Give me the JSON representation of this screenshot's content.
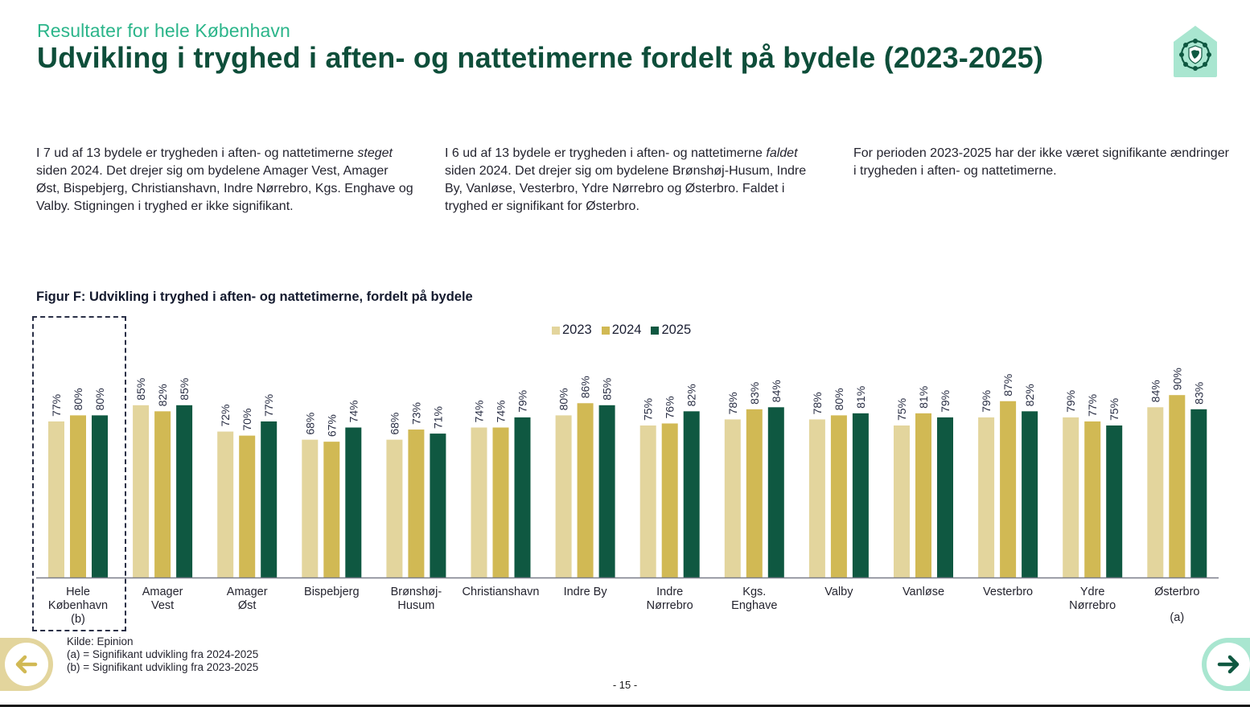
{
  "header": {
    "subtitle": "Resultater for hele København",
    "title": "Udvikling i tryghed i aften- og nattetimerne fordelt på bydele (2023-2025)",
    "logo_icon": "copenhagen-safety-house-icon"
  },
  "columns": [
    {
      "pre": "I 7 ud af 13 bydele er trygheden i aften- og nattetimerne ",
      "emphasis": "steget",
      "post": " siden 2024. Det drejer sig om bydelene Amager Vest, Amager Øst, Bispebjerg, Christianshavn, Indre Nørrebro, Kgs. Enghave og Valby. Stigningen i tryghed er ikke signifikant."
    },
    {
      "pre": "I 6 ud af 13 bydele er trygheden i aften- og nattetimerne ",
      "emphasis": "faldet",
      "post": " siden 2024. Det drejer sig om bydelene Brønshøj-Husum, Indre By, Vanløse, Vesterbro, Ydre Nørrebro og Østerbro. Faldet i tryghed er signifikant for Østerbro."
    },
    {
      "pre": "For perioden 2023-2025 har der ikke været signifikante ændringer i trygheden i aften- og nattetimerne.",
      "emphasis": "",
      "post": ""
    }
  ],
  "colors": {
    "series_2023": "#e3d59d",
    "series_2024": "#d1b954",
    "series_2025": "#0f5841",
    "title_green": "#0e4e3a",
    "subtitle_green": "#2bb58a",
    "nav_left_bg": "#e3d59d",
    "nav_right_bg": "#a9e6d0"
  },
  "chart_data": {
    "type": "bar",
    "title": "Figur F: Udvikling i tryghed i aften- og nattetimerne, fordelt på bydele",
    "xlabel": "",
    "ylabel": "",
    "ylim": [
      0,
      100
    ],
    "grid": false,
    "legend_position": "top-center",
    "value_format": "percent",
    "categories": [
      [
        "Hele",
        "København"
      ],
      [
        "Amager",
        "Vest"
      ],
      [
        "Amager",
        "Øst"
      ],
      [
        "Bispebjerg"
      ],
      [
        "Brønshøj-",
        "Husum"
      ],
      [
        "Christianshavn"
      ],
      [
        "Indre By"
      ],
      [
        "Indre",
        "Nørrebro"
      ],
      [
        "Kgs.",
        "Enghave"
      ],
      [
        "Valby"
      ],
      [
        "Vanløse"
      ],
      [
        "Vesterbro"
      ],
      [
        "Ydre",
        "Nørrebro"
      ],
      [
        "Østerbro"
      ]
    ],
    "category_notes": [
      "(b)",
      "",
      "",
      "",
      "",
      "",
      "",
      "",
      "",
      "",
      "",
      "",
      "",
      "(a)"
    ],
    "highlighted_category": "Hele København",
    "series": [
      {
        "name": "2023",
        "values": [
          77,
          85,
          72,
          68,
          68,
          74,
          80,
          75,
          78,
          78,
          75,
          79,
          79,
          84
        ]
      },
      {
        "name": "2024",
        "values": [
          80,
          82,
          70,
          67,
          73,
          74,
          86,
          76,
          83,
          80,
          81,
          87,
          77,
          90
        ]
      },
      {
        "name": "2025",
        "values": [
          80,
          85,
          77,
          74,
          71,
          79,
          85,
          82,
          84,
          81,
          79,
          82,
          75,
          83
        ]
      }
    ]
  },
  "footer": {
    "source": "Kilde: Epinion",
    "note_a": "(a) = Signifikant udvikling fra 2024-2025",
    "note_b": "(b) = Signifikant udvikling fra 2023-2025",
    "page_number": "- 15 -",
    "prev_icon": "arrow-left-icon",
    "next_icon": "arrow-right-icon"
  }
}
